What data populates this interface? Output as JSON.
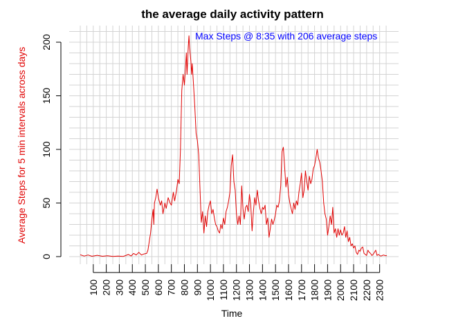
{
  "chart_data": {
    "type": "line",
    "title": "the average daily activity pattern",
    "xlabel": "Time",
    "ylabel": "Average Steps for 5 min intervals across days",
    "annotation": "Max Steps @ 8:35 with 206 average steps",
    "xlim": [
      0,
      2355
    ],
    "ylim": [
      0,
      210
    ],
    "grid": true,
    "x_ticks": [
      "100",
      "200",
      "300",
      "400",
      "500",
      "600",
      "700",
      "800",
      "900",
      "1000",
      "1100",
      "1200",
      "1300",
      "1400",
      "1500",
      "1600",
      "1700",
      "1800",
      "1900",
      "2000",
      "2100",
      "2200",
      "2300"
    ],
    "y_ticks": [
      "0",
      "50",
      "100",
      "150",
      "200"
    ],
    "colors": {
      "line": "#e00000",
      "ylabel": "#e00000",
      "annotation": "#0000ff",
      "grid": "#d3d3d3",
      "axis": "#000000"
    },
    "series": [
      {
        "points": [
          [
            0,
            1.7
          ],
          [
            30,
            0.5
          ],
          [
            60,
            1.5
          ],
          [
            90,
            0.3
          ],
          [
            130,
            1.2
          ],
          [
            170,
            0.3
          ],
          [
            210,
            0.8
          ],
          [
            250,
            0.2
          ],
          [
            290,
            0.5
          ],
          [
            330,
            0.2
          ],
          [
            350,
            1
          ],
          [
            370,
            2
          ],
          [
            390,
            0.6
          ],
          [
            410,
            3
          ],
          [
            430,
            1.5
          ],
          [
            450,
            4
          ],
          [
            470,
            1.5
          ],
          [
            490,
            2.5
          ],
          [
            510,
            3
          ],
          [
            520,
            6
          ],
          [
            530,
            14
          ],
          [
            540,
            22
          ],
          [
            550,
            35
          ],
          [
            560,
            44
          ],
          [
            565,
            30
          ],
          [
            570,
            50
          ],
          [
            580,
            55
          ],
          [
            590,
            63
          ],
          [
            600,
            55
          ],
          [
            615,
            48
          ],
          [
            625,
            52
          ],
          [
            635,
            40
          ],
          [
            650,
            50
          ],
          [
            660,
            45
          ],
          [
            675,
            55
          ],
          [
            690,
            50
          ],
          [
            700,
            48
          ],
          [
            715,
            60
          ],
          [
            725,
            52
          ],
          [
            740,
            62
          ],
          [
            750,
            72
          ],
          [
            760,
            68
          ],
          [
            770,
            100
          ],
          [
            775,
            130
          ],
          [
            780,
            155
          ],
          [
            790,
            170
          ],
          [
            800,
            160
          ],
          [
            810,
            180
          ],
          [
            815,
            190
          ],
          [
            820,
            170
          ],
          [
            830,
            196
          ],
          [
            835,
            206
          ],
          [
            840,
            195
          ],
          [
            850,
            182
          ],
          [
            855,
            170
          ],
          [
            860,
            180
          ],
          [
            870,
            160
          ],
          [
            880,
            140
          ],
          [
            890,
            115
          ],
          [
            900,
            108
          ],
          [
            910,
            95
          ],
          [
            920,
            62
          ],
          [
            930,
            32
          ],
          [
            940,
            42
          ],
          [
            950,
            22
          ],
          [
            960,
            38
          ],
          [
            970,
            28
          ],
          [
            980,
            42
          ],
          [
            990,
            48
          ],
          [
            1000,
            52
          ],
          [
            1010,
            40
          ],
          [
            1020,
            44
          ],
          [
            1030,
            36
          ],
          [
            1040,
            30
          ],
          [
            1050,
            28
          ],
          [
            1060,
            24
          ],
          [
            1070,
            22
          ],
          [
            1080,
            30
          ],
          [
            1090,
            26
          ],
          [
            1100,
            36
          ],
          [
            1110,
            30
          ],
          [
            1120,
            42
          ],
          [
            1130,
            46
          ],
          [
            1140,
            52
          ],
          [
            1150,
            60
          ],
          [
            1160,
            85
          ],
          [
            1170,
            95
          ],
          [
            1180,
            70
          ],
          [
            1190,
            62
          ],
          [
            1200,
            40
          ],
          [
            1210,
            30
          ],
          [
            1220,
            38
          ],
          [
            1230,
            30
          ],
          [
            1240,
            66
          ],
          [
            1250,
            45
          ],
          [
            1260,
            35
          ],
          [
            1270,
            46
          ],
          [
            1280,
            48
          ],
          [
            1290,
            42
          ],
          [
            1300,
            58
          ],
          [
            1310,
            48
          ],
          [
            1320,
            24
          ],
          [
            1330,
            42
          ],
          [
            1340,
            55
          ],
          [
            1350,
            48
          ],
          [
            1360,
            62
          ],
          [
            1370,
            52
          ],
          [
            1380,
            45
          ],
          [
            1390,
            40
          ],
          [
            1400,
            46
          ],
          [
            1410,
            44
          ],
          [
            1420,
            48
          ],
          [
            1430,
            30
          ],
          [
            1440,
            36
          ],
          [
            1450,
            18
          ],
          [
            1460,
            26
          ],
          [
            1470,
            35
          ],
          [
            1480,
            30
          ],
          [
            1490,
            34
          ],
          [
            1500,
            40
          ],
          [
            1510,
            48
          ],
          [
            1520,
            46
          ],
          [
            1530,
            52
          ],
          [
            1540,
            66
          ],
          [
            1550,
            98
          ],
          [
            1560,
            102
          ],
          [
            1570,
            84
          ],
          [
            1580,
            65
          ],
          [
            1590,
            74
          ],
          [
            1600,
            58
          ],
          [
            1610,
            50
          ],
          [
            1620,
            45
          ],
          [
            1630,
            40
          ],
          [
            1640,
            50
          ],
          [
            1650,
            44
          ],
          [
            1660,
            52
          ],
          [
            1670,
            48
          ],
          [
            1680,
            60
          ],
          [
            1690,
            68
          ],
          [
            1700,
            78
          ],
          [
            1710,
            55
          ],
          [
            1720,
            62
          ],
          [
            1730,
            80
          ],
          [
            1740,
            70
          ],
          [
            1750,
            62
          ],
          [
            1760,
            75
          ],
          [
            1770,
            68
          ],
          [
            1780,
            72
          ],
          [
            1790,
            82
          ],
          [
            1800,
            85
          ],
          [
            1810,
            92
          ],
          [
            1820,
            100
          ],
          [
            1830,
            92
          ],
          [
            1840,
            88
          ],
          [
            1850,
            80
          ],
          [
            1860,
            70
          ],
          [
            1870,
            50
          ],
          [
            1880,
            40
          ],
          [
            1890,
            35
          ],
          [
            1900,
            20
          ],
          [
            1910,
            28
          ],
          [
            1920,
            38
          ],
          [
            1930,
            30
          ],
          [
            1940,
            46
          ],
          [
            1950,
            22
          ],
          [
            1960,
            26
          ],
          [
            1970,
            18
          ],
          [
            1980,
            26
          ],
          [
            1990,
            20
          ],
          [
            2000,
            25
          ],
          [
            2010,
            20
          ],
          [
            2020,
            22
          ],
          [
            2030,
            28
          ],
          [
            2040,
            18
          ],
          [
            2050,
            24
          ],
          [
            2060,
            14
          ],
          [
            2070,
            18
          ],
          [
            2080,
            10
          ],
          [
            2090,
            12
          ],
          [
            2100,
            8
          ],
          [
            2110,
            10
          ],
          [
            2120,
            4
          ],
          [
            2130,
            2
          ],
          [
            2140,
            6
          ],
          [
            2150,
            5
          ],
          [
            2160,
            8
          ],
          [
            2170,
            9
          ],
          [
            2180,
            3
          ],
          [
            2190,
            2
          ],
          [
            2200,
            1
          ],
          [
            2210,
            6
          ],
          [
            2220,
            4
          ],
          [
            2230,
            3
          ],
          [
            2240,
            1
          ],
          [
            2250,
            2
          ],
          [
            2260,
            4
          ],
          [
            2270,
            6
          ],
          [
            2280,
            1
          ],
          [
            2290,
            2
          ],
          [
            2300,
            1
          ],
          [
            2310,
            0.5
          ],
          [
            2320,
            1
          ],
          [
            2330,
            1.5
          ],
          [
            2340,
            1
          ],
          [
            2350,
            0.8
          ],
          [
            2355,
            1.1
          ]
        ]
      }
    ]
  }
}
